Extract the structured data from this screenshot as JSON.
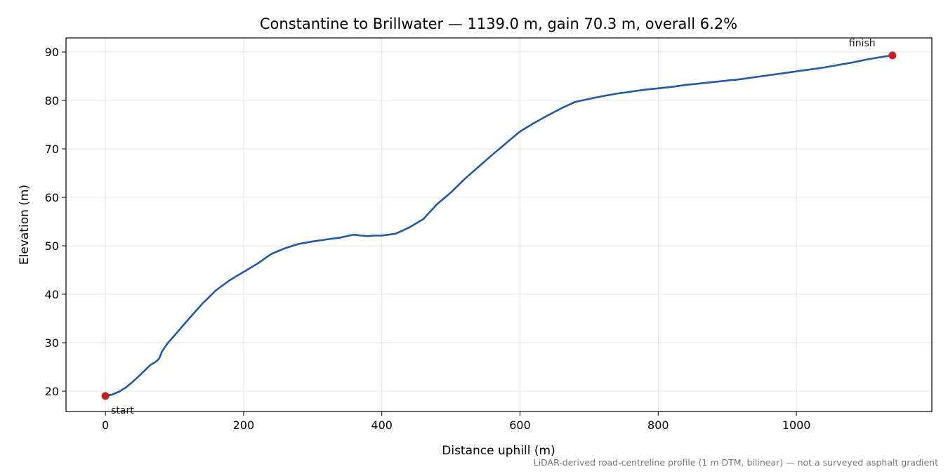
{
  "chart_data": {
    "type": "line",
    "title": "Constantine to Brillwater — 1139.0 m, gain 70.3 m, overall 6.2%",
    "xlabel": "Distance uphill (m)",
    "ylabel": "Elevation (m)",
    "xlim": [
      -57,
      1196
    ],
    "ylim": [
      15.8,
      92.9
    ],
    "xticks": [
      0,
      200,
      400,
      600,
      800,
      1000
    ],
    "yticks": [
      20,
      30,
      40,
      50,
      60,
      70,
      80,
      90
    ],
    "grid": true,
    "series": [
      {
        "color": "#1f5aa8",
        "x": [
          0,
          10,
          20,
          30,
          40,
          50,
          60,
          65,
          70,
          75,
          78,
          82,
          90,
          100,
          120,
          140,
          160,
          180,
          200,
          220,
          240,
          260,
          280,
          300,
          320,
          340,
          350,
          360,
          370,
          380,
          390,
          400,
          420,
          440,
          460,
          480,
          500,
          520,
          540,
          560,
          580,
          600,
          620,
          640,
          660,
          680,
          700,
          720,
          740,
          760,
          780,
          800,
          820,
          840,
          860,
          880,
          900,
          920,
          940,
          960,
          980,
          1000,
          1020,
          1040,
          1060,
          1080,
          1100,
          1120,
          1139
        ],
        "y": [
          19.0,
          19.3,
          19.9,
          20.8,
          22.0,
          23.3,
          24.7,
          25.4,
          25.8,
          26.3,
          26.8,
          28.2,
          29.9,
          31.5,
          34.8,
          38.0,
          40.8,
          42.9,
          44.6,
          46.3,
          48.3,
          49.5,
          50.4,
          50.9,
          51.3,
          51.7,
          52.0,
          52.3,
          52.1,
          52.0,
          52.1,
          52.1,
          52.5,
          53.8,
          55.5,
          58.6,
          61.0,
          63.8,
          66.3,
          68.8,
          71.2,
          73.6,
          75.3,
          76.9,
          78.4,
          79.7,
          80.3,
          80.9,
          81.4,
          81.8,
          82.2,
          82.5,
          82.8,
          83.2,
          83.5,
          83.8,
          84.1,
          84.4,
          84.8,
          85.2,
          85.6,
          86.0,
          86.4,
          86.8,
          87.3,
          87.8,
          88.4,
          88.9,
          89.3
        ]
      }
    ],
    "markers": [
      {
        "label": "start",
        "x": 0,
        "y": 19.0,
        "color": "#c0202a"
      },
      {
        "label": "finish",
        "x": 1139,
        "y": 89.3,
        "color": "#c0202a"
      }
    ],
    "footnote": "LiDAR-derived road-centreline profile (1 m DTM, bilinear) — not a surveyed asphalt gradient"
  }
}
